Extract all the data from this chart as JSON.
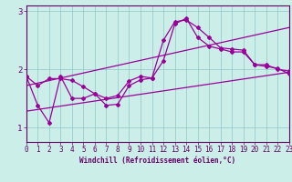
{
  "title": "",
  "xlabel": "Windchill (Refroidissement éolien,°C)",
  "ylabel": "",
  "background_color": "#cceee8",
  "line_color": "#990099",
  "grid_color": "#99cccc",
  "xmin": 0,
  "xmax": 23,
  "ymin": 0.75,
  "ymax": 3.1,
  "yticks": [
    1,
    2,
    3
  ],
  "xticks": [
    0,
    1,
    2,
    3,
    4,
    5,
    6,
    7,
    8,
    9,
    10,
    11,
    12,
    13,
    14,
    15,
    16,
    17,
    18,
    19,
    20,
    21,
    22,
    23
  ],
  "line1_x": [
    0,
    1,
    2,
    3,
    4,
    5,
    6,
    7,
    8,
    9,
    10,
    11,
    12,
    13,
    14,
    15,
    16,
    17,
    18,
    19,
    20,
    21,
    22,
    23
  ],
  "line1_y": [
    1.88,
    1.72,
    1.84,
    1.84,
    1.81,
    1.7,
    1.58,
    1.5,
    1.55,
    1.8,
    1.88,
    1.85,
    2.5,
    2.82,
    2.85,
    2.72,
    2.55,
    2.37,
    2.35,
    2.33,
    2.08,
    2.08,
    2.0,
    1.97
  ],
  "line2_x": [
    0,
    1,
    2,
    3,
    4,
    5,
    6,
    7,
    8,
    9,
    10,
    11,
    12,
    13,
    14,
    15,
    16,
    17,
    18,
    19,
    20,
    21,
    22,
    23
  ],
  "line2_y": [
    1.88,
    1.38,
    1.08,
    1.88,
    1.5,
    1.5,
    1.58,
    1.38,
    1.4,
    1.72,
    1.82,
    1.85,
    2.15,
    2.78,
    2.88,
    2.55,
    2.4,
    2.35,
    2.3,
    2.3,
    2.08,
    2.05,
    2.02,
    1.92
  ],
  "line3_x": [
    0,
    23
  ],
  "line3_y": [
    1.28,
    1.95
  ],
  "line4_x": [
    0,
    23
  ],
  "line4_y": [
    1.72,
    2.72
  ],
  "font_color": "#660066",
  "xlabel_fontsize": 5.5,
  "tick_fontsize": 5.5,
  "ytick_fontsize": 6.5
}
